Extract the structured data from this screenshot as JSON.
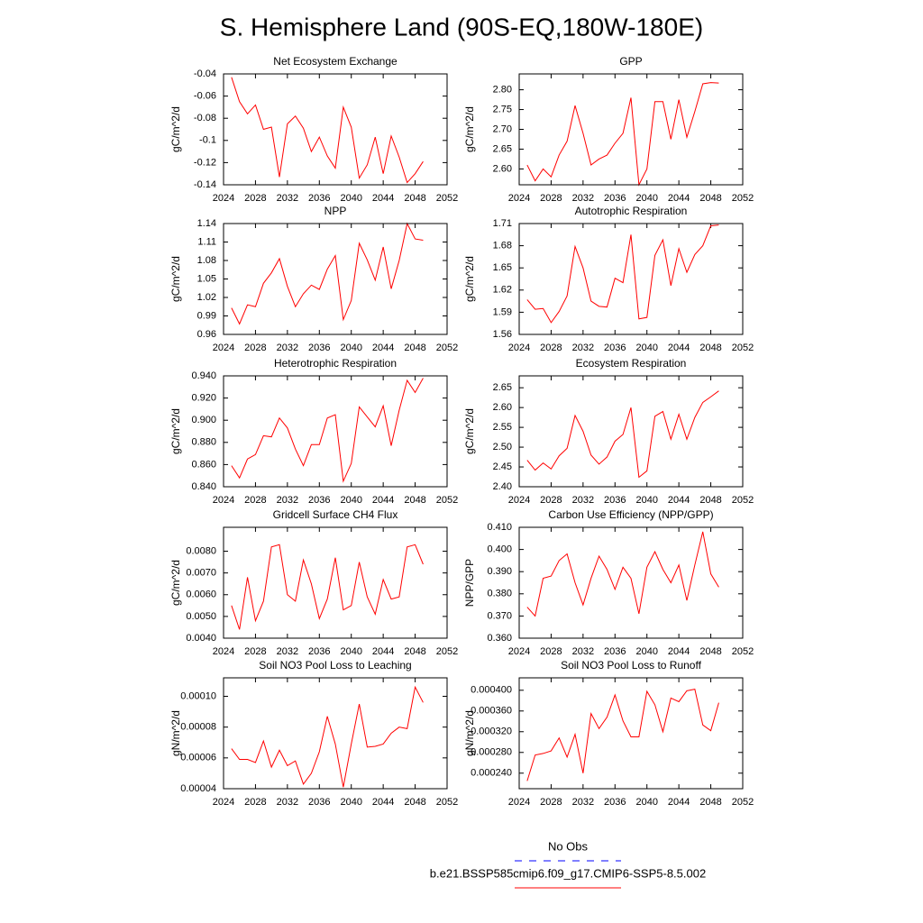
{
  "title": "S. Hemisphere Land (90S-EQ,180W-180E)",
  "legend": [
    {
      "name": "No Obs",
      "color": "#0000ff",
      "dashed": true
    },
    {
      "name": "b.e21.BSSP585cmip6.f09_g17.CMIP6-SSP5-8.5.002",
      "color": "#ff0000",
      "dashed": false
    }
  ],
  "chart_data": [
    {
      "type": "line",
      "title": "Net Ecosystem Exchange",
      "ylabel": "gC/m^2/d",
      "color": "#ff0000",
      "x": [
        2025,
        2026,
        2027,
        2028,
        2029,
        2030,
        2031,
        2032,
        2033,
        2034,
        2035,
        2036,
        2037,
        2038,
        2039,
        2040,
        2041,
        2042,
        2043,
        2044,
        2045,
        2046,
        2047,
        2048,
        2049
      ],
      "values": [
        -0.043,
        -0.065,
        -0.076,
        -0.068,
        -0.09,
        -0.088,
        -0.133,
        -0.085,
        -0.078,
        -0.089,
        -0.11,
        -0.097,
        -0.114,
        -0.125,
        -0.07,
        -0.088,
        -0.134,
        -0.122,
        -0.097,
        -0.13,
        -0.096,
        -0.115,
        -0.138,
        -0.13,
        -0.119
      ],
      "xlim": [
        2024,
        2052
      ],
      "xticks": [
        2024,
        2028,
        2032,
        2036,
        2040,
        2044,
        2048,
        2052
      ],
      "ylim": [
        -0.14,
        -0.04
      ],
      "yticks": [
        -0.14,
        -0.12,
        -0.1,
        -0.08,
        -0.06,
        -0.04
      ]
    },
    {
      "type": "line",
      "title": "GPP",
      "ylabel": "gC/m^2/d",
      "color": "#ff0000",
      "x": [
        2025,
        2026,
        2027,
        2028,
        2029,
        2030,
        2031,
        2032,
        2033,
        2034,
        2035,
        2036,
        2037,
        2038,
        2039,
        2040,
        2041,
        2042,
        2043,
        2044,
        2045,
        2046,
        2047,
        2048,
        2049
      ],
      "values": [
        2.61,
        2.57,
        2.6,
        2.58,
        2.635,
        2.67,
        2.76,
        2.69,
        2.61,
        2.625,
        2.635,
        2.665,
        2.69,
        2.78,
        2.56,
        2.6,
        2.77,
        2.77,
        2.675,
        2.775,
        2.68,
        2.745,
        2.815,
        2.818,
        2.817
      ],
      "xlim": [
        2024,
        2052
      ],
      "xticks": [
        2024,
        2028,
        2032,
        2036,
        2040,
        2044,
        2048,
        2052
      ],
      "ylim": [
        2.56,
        2.84
      ],
      "yticks": [
        {
          "value": 2.6,
          "label": "2.60"
        },
        2.65,
        {
          "value": 2.7,
          "label": "2.70"
        },
        2.75,
        {
          "value": 2.8,
          "label": "2.80"
        }
      ]
    },
    {
      "type": "line",
      "title": "NPP",
      "ylabel": "gC/m^2/d",
      "color": "#ff0000",
      "x": [
        2025,
        2026,
        2027,
        2028,
        2029,
        2030,
        2031,
        2032,
        2033,
        2034,
        2035,
        2036,
        2037,
        2038,
        2039,
        2040,
        2041,
        2042,
        2043,
        2044,
        2045,
        2046,
        2047,
        2048,
        2049
      ],
      "values": [
        1.003,
        0.977,
        1.008,
        1.005,
        1.043,
        1.06,
        1.083,
        1.038,
        1.005,
        1.026,
        1.04,
        1.033,
        1.066,
        1.088,
        0.984,
        1.015,
        1.108,
        1.081,
        1.048,
        1.102,
        1.034,
        1.08,
        1.14,
        1.115,
        1.113
      ],
      "xlim": [
        2024,
        2052
      ],
      "xticks": [
        2024,
        2028,
        2032,
        2036,
        2040,
        2044,
        2048,
        2052
      ],
      "ylim": [
        0.96,
        1.14
      ],
      "yticks": [
        0.96,
        0.99,
        1.02,
        1.05,
        1.08,
        1.11,
        1.14
      ]
    },
    {
      "type": "line",
      "title": "Autotrophic Respiration",
      "ylabel": "gC/m^2/d",
      "color": "#ff0000",
      "x": [
        2025,
        2026,
        2027,
        2028,
        2029,
        2030,
        2031,
        2032,
        2033,
        2034,
        2035,
        2036,
        2037,
        2038,
        2039,
        2040,
        2041,
        2042,
        2043,
        2044,
        2045,
        2046,
        2047,
        2048,
        2049
      ],
      "values": [
        1.607,
        1.594,
        1.595,
        1.576,
        1.591,
        1.612,
        1.679,
        1.65,
        1.605,
        1.598,
        1.597,
        1.636,
        1.63,
        1.695,
        1.581,
        1.583,
        1.667,
        1.688,
        1.626,
        1.676,
        1.644,
        1.668,
        1.68,
        1.707,
        1.708
      ],
      "xlim": [
        2024,
        2052
      ],
      "xticks": [
        2024,
        2028,
        2032,
        2036,
        2040,
        2044,
        2048,
        2052
      ],
      "ylim": [
        1.56,
        1.71
      ],
      "yticks": [
        1.56,
        1.59,
        1.62,
        1.65,
        1.68,
        1.71
      ]
    },
    {
      "type": "line",
      "title": "Heterotrophic Respiration",
      "ylabel": "gC/m^2/d",
      "color": "#ff0000",
      "x": [
        2025,
        2026,
        2027,
        2028,
        2029,
        2030,
        2031,
        2032,
        2033,
        2034,
        2035,
        2036,
        2037,
        2038,
        2039,
        2040,
        2041,
        2042,
        2043,
        2044,
        2045,
        2046,
        2047,
        2048,
        2049
      ],
      "values": [
        0.859,
        0.848,
        0.865,
        0.869,
        0.886,
        0.885,
        0.902,
        0.893,
        0.874,
        0.859,
        0.878,
        0.878,
        0.902,
        0.905,
        0.845,
        0.861,
        0.912,
        0.903,
        0.894,
        0.913,
        0.877,
        0.909,
        0.936,
        0.925,
        0.938
      ],
      "xlim": [
        2024,
        2052
      ],
      "xticks": [
        2024,
        2028,
        2032,
        2036,
        2040,
        2044,
        2048,
        2052
      ],
      "ylim": [
        0.84,
        0.94
      ],
      "yticks": [
        {
          "value": 0.84,
          "label": "0.840"
        },
        {
          "value": 0.86,
          "label": "0.860"
        },
        {
          "value": 0.88,
          "label": "0.880"
        },
        {
          "value": 0.9,
          "label": "0.900"
        },
        {
          "value": 0.92,
          "label": "0.920"
        },
        {
          "value": 0.94,
          "label": "0.940"
        }
      ]
    },
    {
      "type": "line",
      "title": "Ecosystem Respiration",
      "ylabel": "gC/m^2/d",
      "color": "#ff0000",
      "x": [
        2025,
        2026,
        2027,
        2028,
        2029,
        2030,
        2031,
        2032,
        2033,
        2034,
        2035,
        2036,
        2037,
        2038,
        2039,
        2040,
        2041,
        2042,
        2043,
        2044,
        2045,
        2046,
        2047,
        2048,
        2049
      ],
      "values": [
        2.467,
        2.442,
        2.46,
        2.445,
        2.478,
        2.497,
        2.58,
        2.54,
        2.48,
        2.457,
        2.475,
        2.515,
        2.532,
        2.6,
        2.424,
        2.44,
        2.578,
        2.59,
        2.52,
        2.583,
        2.52,
        2.575,
        2.613,
        2.627,
        2.642
      ],
      "xlim": [
        2024,
        2052
      ],
      "xticks": [
        2024,
        2028,
        2032,
        2036,
        2040,
        2044,
        2048,
        2052
      ],
      "ylim": [
        2.4,
        2.68
      ],
      "yticks": [
        {
          "value": 2.4,
          "label": "2.40"
        },
        2.45,
        {
          "value": 2.5,
          "label": "2.50"
        },
        2.55,
        {
          "value": 2.6,
          "label": "2.60"
        },
        2.65
      ]
    },
    {
      "type": "line",
      "title": "Gridcell Surface CH4 Flux",
      "ylabel": "gC/m^2/d",
      "color": "#ff0000",
      "x": [
        2025,
        2026,
        2027,
        2028,
        2029,
        2030,
        2031,
        2032,
        2033,
        2034,
        2035,
        2036,
        2037,
        2038,
        2039,
        2040,
        2041,
        2042,
        2043,
        2044,
        2045,
        2046,
        2047,
        2048,
        2049
      ],
      "values": [
        0.0055,
        0.0044,
        0.0068,
        0.0048,
        0.0057,
        0.0082,
        0.0083,
        0.006,
        0.0057,
        0.0076,
        0.0065,
        0.0049,
        0.0058,
        0.0077,
        0.0053,
        0.0055,
        0.0075,
        0.0059,
        0.0051,
        0.0067,
        0.0058,
        0.0059,
        0.0082,
        0.0083,
        0.0074
      ],
      "xlim": [
        2024,
        2052
      ],
      "xticks": [
        2024,
        2028,
        2032,
        2036,
        2040,
        2044,
        2048,
        2052
      ],
      "ylim": [
        0.004,
        0.0091
      ],
      "yticks": [
        {
          "value": 0.004,
          "label": "0.0040"
        },
        {
          "value": 0.005,
          "label": "0.0050"
        },
        {
          "value": 0.006,
          "label": "0.0060"
        },
        {
          "value": 0.007,
          "label": "0.0070"
        },
        {
          "value": 0.008,
          "label": "0.0080"
        }
      ]
    },
    {
      "type": "line",
      "title": "Carbon Use Efficiency (NPP/GPP)",
      "ylabel": "NPP/GPP",
      "color": "#ff0000",
      "x": [
        2025,
        2026,
        2027,
        2028,
        2029,
        2030,
        2031,
        2032,
        2033,
        2034,
        2035,
        2036,
        2037,
        2038,
        2039,
        2040,
        2041,
        2042,
        2043,
        2044,
        2045,
        2046,
        2047,
        2048,
        2049
      ],
      "values": [
        0.374,
        0.37,
        0.387,
        0.388,
        0.395,
        0.398,
        0.385,
        0.375,
        0.387,
        0.397,
        0.391,
        0.382,
        0.392,
        0.387,
        0.371,
        0.392,
        0.399,
        0.391,
        0.385,
        0.393,
        0.377,
        0.393,
        0.408,
        0.389,
        0.383
      ],
      "xlim": [
        2024,
        2052
      ],
      "xticks": [
        2024,
        2028,
        2032,
        2036,
        2040,
        2044,
        2048,
        2052
      ],
      "ylim": [
        0.36,
        0.41
      ],
      "yticks": [
        {
          "value": 0.36,
          "label": "0.360"
        },
        {
          "value": 0.37,
          "label": "0.370"
        },
        {
          "value": 0.38,
          "label": "0.380"
        },
        {
          "value": 0.39,
          "label": "0.390"
        },
        {
          "value": 0.4,
          "label": "0.400"
        },
        {
          "value": 0.41,
          "label": "0.410"
        }
      ]
    },
    {
      "type": "line",
      "title": "Soil NO3 Pool Loss to Leaching",
      "ylabel": "gN/m^2/d",
      "color": "#ff0000",
      "x": [
        2025,
        2026,
        2027,
        2028,
        2029,
        2030,
        2031,
        2032,
        2033,
        2034,
        2035,
        2036,
        2037,
        2038,
        2039,
        2040,
        2041,
        2042,
        2043,
        2044,
        2045,
        2046,
        2047,
        2048,
        2049
      ],
      "values": [
        6.6e-05,
        5.9e-05,
        5.9e-05,
        5.7e-05,
        7.1e-05,
        5.4e-05,
        6.5e-05,
        5.5e-05,
        5.8e-05,
        4.3e-05,
        5e-05,
        6.4e-05,
        8.7e-05,
        6.9e-05,
        4.1e-05,
        6.9e-05,
        9.5e-05,
        6.7e-05,
        6.75e-05,
        6.9e-05,
        7.6e-05,
        8e-05,
        7.9e-05,
        0.000106,
        9.6e-05
      ],
      "xlim": [
        2024,
        2052
      ],
      "xticks": [
        2024,
        2028,
        2032,
        2036,
        2040,
        2044,
        2048,
        2052
      ],
      "ylim": [
        4e-05,
        0.000112
      ],
      "yticks": [
        {
          "value": 4e-05,
          "label": "0.00004"
        },
        {
          "value": 6e-05,
          "label": "0.00006"
        },
        {
          "value": 8e-05,
          "label": "0.00008"
        },
        {
          "value": 0.0001,
          "label": "0.00010"
        }
      ]
    },
    {
      "type": "line",
      "title": "Soil NO3 Pool Loss to Runoff",
      "ylabel": "gN/m^2/d",
      "color": "#ff0000",
      "x": [
        2025,
        2026,
        2027,
        2028,
        2029,
        2030,
        2031,
        2032,
        2033,
        2034,
        2035,
        2036,
        2037,
        2038,
        2039,
        2040,
        2041,
        2042,
        2043,
        2044,
        2045,
        2046,
        2047,
        2048,
        2049
      ],
      "values": [
        0.000225,
        0.000275,
        0.000278,
        0.000283,
        0.000308,
        0.000271,
        0.000315,
        0.00024,
        0.000355,
        0.000326,
        0.000348,
        0.000391,
        0.000341,
        0.00031,
        0.00031,
        0.000398,
        0.000372,
        0.00032,
        0.000385,
        0.000378,
        0.000399,
        0.000402,
        0.000333,
        0.000322,
        0.000376
      ],
      "xlim": [
        2024,
        2052
      ],
      "xticks": [
        2024,
        2028,
        2032,
        2036,
        2040,
        2044,
        2048,
        2052
      ],
      "ylim": [
        0.00021,
        0.000424
      ],
      "yticks": [
        {
          "value": 0.00024,
          "label": "0.000240"
        },
        {
          "value": 0.00028,
          "label": "0.000280"
        },
        {
          "value": 0.00032,
          "label": "0.000320"
        },
        {
          "value": 0.00036,
          "label": "0.000360"
        },
        {
          "value": 0.0004,
          "label": "0.000400"
        }
      ]
    }
  ]
}
